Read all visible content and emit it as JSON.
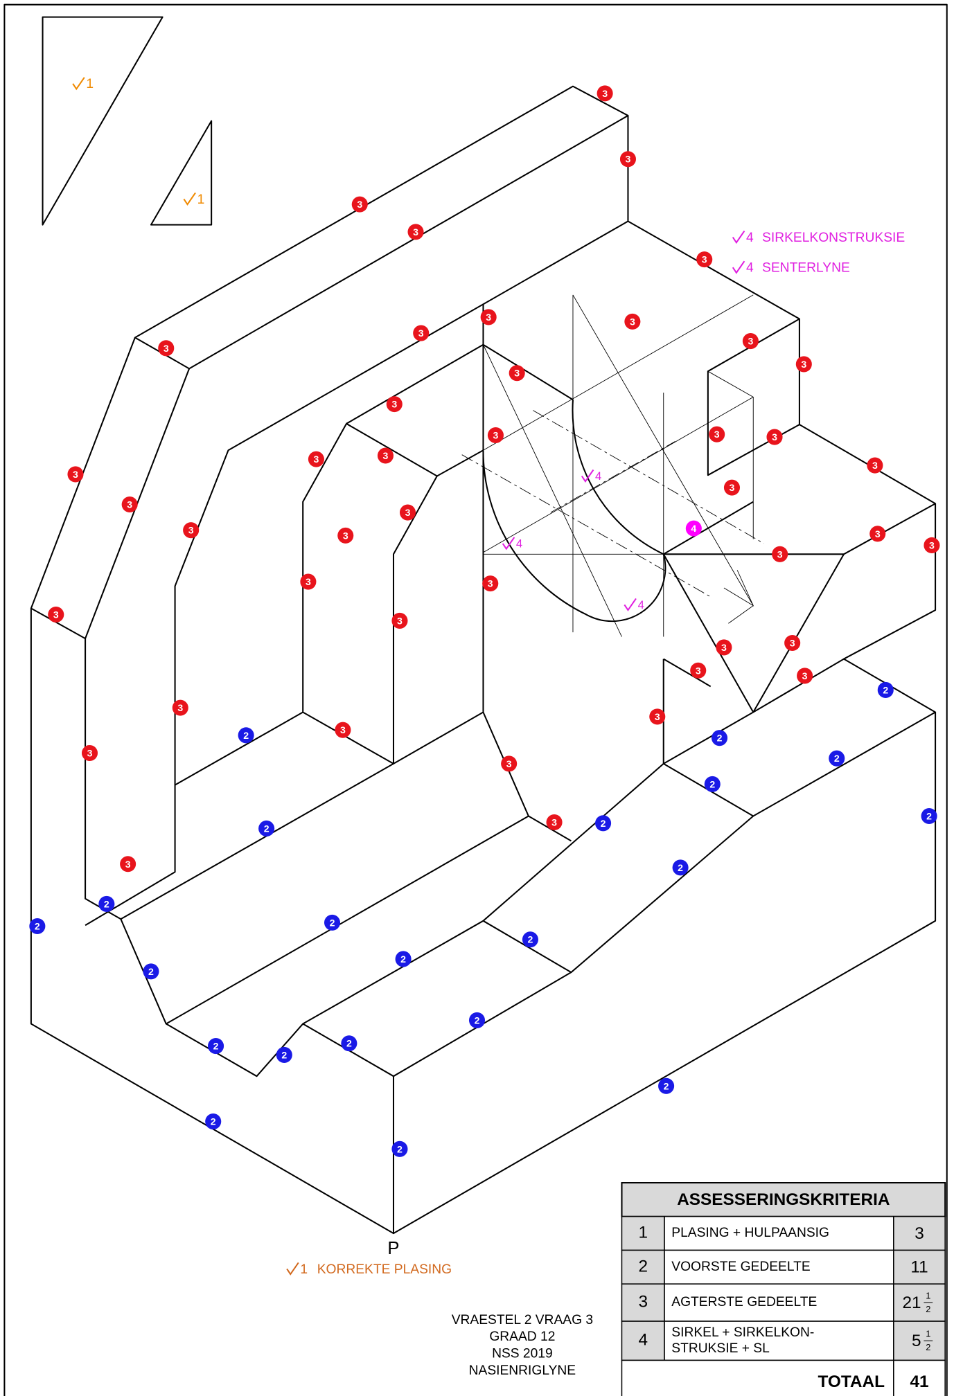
{
  "drawing": {
    "markers_3": [
      3,
      3,
      3,
      3,
      3,
      3,
      3,
      3,
      3,
      3,
      3,
      3,
      3,
      3,
      3,
      3,
      3,
      3,
      3,
      3,
      3,
      3,
      3,
      3,
      3,
      3,
      3,
      3,
      3,
      3,
      3,
      3,
      3,
      3,
      3,
      3,
      3,
      3,
      3,
      3,
      3,
      3,
      3
    ],
    "markers_2": [
      2,
      2,
      2,
      2,
      2,
      2,
      2,
      2,
      2,
      2,
      2,
      2,
      2,
      2,
      2,
      2,
      2,
      2,
      2,
      2,
      2,
      2
    ],
    "marker_4": 4,
    "aux_checks": [
      "1",
      "1"
    ],
    "circle_checks": [
      "4",
      "4",
      "4"
    ],
    "annotations": [
      {
        "mark": "4",
        "text": "SIRKELKONSTRUKSIE"
      },
      {
        "mark": "4",
        "text": "SENTERLYNE"
      }
    ],
    "point_label": "P",
    "placement": {
      "mark": "1",
      "text": "KORREKTE PLASING"
    },
    "footer": [
      "VRAESTEL 2 VRAAG 3",
      "GRAAD 12",
      "NSS 2019",
      "NASIENRIGLYNE"
    ]
  },
  "table": {
    "title": "ASSESSERINGSKRITERIA",
    "rows": [
      {
        "no": "1",
        "item": [
          "PLASING + HULPAANSIG"
        ],
        "score": {
          "whole": "3"
        }
      },
      {
        "no": "2",
        "item": [
          "VOORSTE GEDEELTE"
        ],
        "score": {
          "whole": "11"
        }
      },
      {
        "no": "3",
        "item": [
          "AGTERSTE GEDEELTE"
        ],
        "score": {
          "whole": "21",
          "num": "1",
          "den": "2"
        }
      },
      {
        "no": "4",
        "item": [
          "SIRKEL + SIRKELKON-",
          "STRUKSIE + SL"
        ],
        "score": {
          "whole": "5",
          "num": "1",
          "den": "2"
        }
      }
    ],
    "total_label": "TOTAAL",
    "total": "41"
  }
}
